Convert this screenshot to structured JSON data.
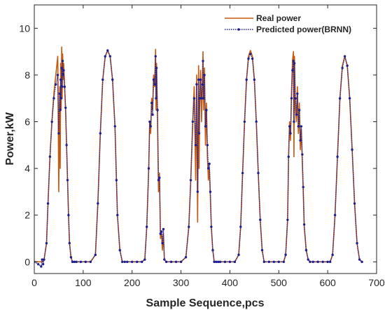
{
  "chart_data": {
    "type": "line",
    "title": "",
    "xlabel": "Sample Sequence,pcs",
    "ylabel": "Power,kW",
    "xlim": [
      0,
      700
    ],
    "ylim": [
      -0.5,
      11
    ],
    "xticks": [
      "0",
      "100",
      "200",
      "300",
      "400",
      "500",
      "600",
      "700"
    ],
    "yticks": [
      "0",
      "2",
      "4",
      "6",
      "8",
      "10"
    ],
    "grid": false,
    "legend_position": "top-right",
    "series": [
      {
        "name": "Real power",
        "color": "#c55a11",
        "style": "solid",
        "x": [
          0,
          8,
          18,
          20,
          25,
          28,
          32,
          36,
          40,
          44,
          48,
          50,
          52,
          53,
          54,
          55,
          56,
          57,
          58,
          59,
          60,
          62,
          64,
          66,
          68,
          70,
          72,
          75,
          78,
          82,
          86,
          95,
          105,
          115,
          125,
          130,
          135,
          140,
          145,
          150,
          155,
          160,
          165,
          168,
          170,
          175,
          180,
          185,
          190,
          200,
          210,
          220,
          226,
          230,
          234,
          236,
          238,
          240,
          242,
          244,
          246,
          248,
          249,
          250,
          252,
          254,
          256,
          258,
          260,
          262,
          264,
          266,
          270,
          280,
          290,
          300,
          310,
          316,
          320,
          324,
          327,
          330,
          332,
          334,
          336,
          337,
          338,
          340,
          342,
          344,
          345,
          346,
          348,
          350,
          352,
          354,
          356,
          358,
          360,
          362,
          365,
          368,
          372,
          376,
          380,
          390,
          400,
          410,
          418,
          422,
          426,
          430,
          434,
          438,
          442,
          446,
          450,
          454,
          458,
          462,
          466,
          470,
          480,
          490,
          500,
          510,
          514,
          518,
          520,
          522,
          524,
          526,
          528,
          530,
          531,
          532,
          534,
          536,
          538,
          540,
          542,
          544,
          546,
          548,
          550,
          552,
          556,
          560,
          564,
          570,
          580,
          590,
          600,
          605,
          610,
          615,
          620,
          625,
          630,
          635,
          640,
          645,
          650,
          655,
          660,
          665,
          670
        ],
        "y": [
          0,
          0,
          0,
          0.1,
          0.8,
          2.5,
          4.5,
          6.0,
          7.2,
          8.0,
          8.8,
          3.0,
          7.5,
          4.0,
          8.5,
          6.5,
          9.2,
          7.0,
          8.9,
          7.8,
          8.5,
          7.5,
          6.5,
          5.0,
          3.5,
          2.0,
          0.8,
          0.2,
          0,
          0,
          0,
          0,
          0,
          0,
          0.3,
          2.5,
          5.5,
          7.8,
          8.8,
          9.05,
          8.8,
          7.8,
          5.8,
          3.5,
          2.0,
          0.5,
          0,
          0,
          0,
          0,
          0,
          0,
          0.1,
          1.5,
          4.0,
          6.0,
          5.5,
          7.0,
          6.5,
          8.0,
          7.5,
          9.1,
          6.5,
          8.5,
          6.0,
          3.0,
          3.8,
          1.0,
          1.3,
          0.5,
          1.2,
          0.1,
          0,
          0,
          0,
          0,
          0.2,
          1.5,
          3.5,
          6.0,
          7.5,
          3.5,
          8.0,
          1.7,
          8.4,
          4.0,
          6.5,
          8.2,
          6.0,
          8.0,
          9.0,
          6.5,
          8.3,
          5.0,
          6.8,
          4.5,
          3.5,
          4.0,
          2.8,
          1.5,
          0.5,
          0,
          0,
          0,
          0,
          0,
          0,
          0,
          0.3,
          1.5,
          3.8,
          6.0,
          7.8,
          8.8,
          9.05,
          8.8,
          7.8,
          6.0,
          3.8,
          1.8,
          0.5,
          0,
          0,
          0,
          0,
          0,
          0.3,
          1.8,
          4.5,
          6.0,
          5.2,
          7.3,
          8.6,
          9.0,
          4.5,
          8.8,
          6.5,
          6.0,
          7.5,
          5.5,
          6.8,
          4.8,
          5.7,
          4.3,
          3.0,
          1.5,
          0.5,
          0.1,
          0,
          0,
          0,
          0,
          0,
          0,
          0.3,
          2.0,
          4.5,
          7.0,
          8.4,
          8.8,
          8.4,
          7.0,
          4.8,
          2.5,
          0.8,
          0.1,
          0
        ],
        "markers": false
      },
      {
        "name": "Predicted power(BRNN)",
        "color": "#1f1f8f",
        "style": "dotted",
        "x": [
          0,
          8,
          14,
          16,
          18,
          20,
          25,
          28,
          32,
          36,
          40,
          44,
          48,
          50,
          52,
          53,
          54,
          55,
          56,
          57,
          58,
          59,
          60,
          62,
          64,
          66,
          68,
          70,
          72,
          75,
          78,
          82,
          86,
          95,
          105,
          115,
          125,
          130,
          135,
          140,
          145,
          150,
          155,
          160,
          165,
          168,
          170,
          175,
          180,
          185,
          190,
          200,
          210,
          220,
          226,
          230,
          234,
          236,
          238,
          240,
          242,
          244,
          246,
          248,
          249,
          250,
          252,
          254,
          256,
          258,
          260,
          262,
          264,
          266,
          270,
          280,
          290,
          300,
          310,
          316,
          320,
          324,
          327,
          330,
          332,
          334,
          336,
          337,
          338,
          340,
          342,
          344,
          345,
          346,
          348,
          350,
          352,
          354,
          356,
          358,
          360,
          362,
          365,
          368,
          372,
          376,
          380,
          390,
          400,
          410,
          418,
          422,
          426,
          430,
          434,
          438,
          442,
          446,
          450,
          454,
          458,
          462,
          466,
          470,
          480,
          490,
          500,
          510,
          514,
          518,
          520,
          522,
          524,
          526,
          528,
          530,
          531,
          532,
          534,
          536,
          538,
          540,
          542,
          544,
          546,
          548,
          550,
          552,
          556,
          560,
          564,
          570,
          580,
          590,
          600,
          605,
          610,
          615,
          620,
          625,
          630,
          635,
          640,
          645,
          650,
          655,
          660,
          665,
          670
        ],
        "y": [
          0,
          -0.1,
          -0.2,
          0.1,
          -0.1,
          0.1,
          0.8,
          2.5,
          4.5,
          6.0,
          7.0,
          7.6,
          8.0,
          5.5,
          7.2,
          6.5,
          7.8,
          7.0,
          8.3,
          7.5,
          8.6,
          8.0,
          8.2,
          7.5,
          6.6,
          5.0,
          3.5,
          2.0,
          0.8,
          0.2,
          0,
          0,
          0,
          0,
          0,
          0,
          0.3,
          2.5,
          5.5,
          7.8,
          8.8,
          9.05,
          8.8,
          7.8,
          5.8,
          3.5,
          2.0,
          0.5,
          0,
          0,
          0,
          0,
          0,
          0,
          0.1,
          1.5,
          4.0,
          6.0,
          5.8,
          6.8,
          6.3,
          7.8,
          7.6,
          8.8,
          7.0,
          8.3,
          6.5,
          3.5,
          3.6,
          1.2,
          1.3,
          0.8,
          1.4,
          0.1,
          0,
          0,
          0,
          0,
          0.2,
          1.5,
          3.5,
          6.0,
          7.0,
          5.0,
          7.6,
          3.0,
          7.8,
          5.5,
          7.0,
          7.8,
          7.0,
          7.6,
          8.6,
          7.0,
          8.0,
          5.8,
          6.5,
          5.0,
          4.0,
          4.2,
          3.0,
          1.5,
          0.5,
          0,
          0,
          0,
          0,
          0,
          0,
          0,
          0.3,
          1.5,
          3.8,
          6.0,
          7.8,
          8.7,
          8.9,
          8.7,
          7.8,
          6.0,
          3.8,
          1.8,
          0.5,
          0,
          0,
          0,
          0,
          0,
          0.3,
          1.8,
          4.5,
          5.8,
          5.5,
          7.0,
          8.2,
          8.6,
          6.0,
          8.5,
          7.0,
          6.3,
          7.2,
          5.8,
          6.5,
          5.2,
          5.8,
          4.6,
          3.2,
          1.6,
          0.5,
          0.1,
          0,
          0,
          0,
          0,
          0,
          0,
          0.3,
          2.0,
          4.5,
          7.0,
          8.3,
          8.8,
          8.4,
          7.0,
          4.8,
          2.5,
          0.8,
          0.1,
          0
        ],
        "markers": true
      }
    ]
  }
}
